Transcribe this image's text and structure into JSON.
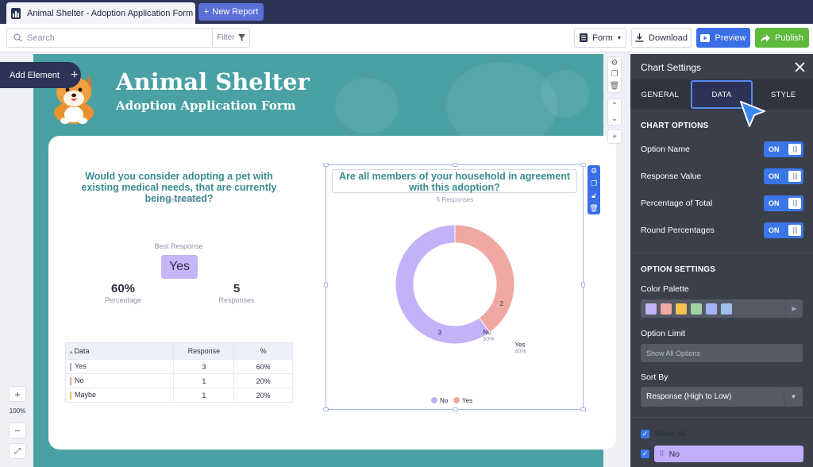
{
  "app": {
    "doc_tab_title": "Animal Shelter - Adoption Application Form",
    "new_report_label": "New Report"
  },
  "toolbar": {
    "search_placeholder": "Search",
    "filter_label": "Filter",
    "form_label": "Form",
    "download_label": "Download",
    "preview_label": "Preview",
    "publish_label": "Publish"
  },
  "canvas": {
    "add_element_label": "Add Element",
    "zoom_level": "100%"
  },
  "report": {
    "title": "Animal Shelter",
    "subtitle": "Adoption Application Form"
  },
  "chart1": {
    "question": "Would you consider adopting a pet with existing medical needs, that are currently being treated?",
    "responses_text": "5 Responses",
    "best_response_label": "Best Response",
    "best_response_value": "Yes",
    "percentage_value": "60%",
    "percentage_label": "Percentage",
    "responses_value": "5",
    "responses_label": "Responses",
    "table": {
      "headers": [
        "Data",
        "Response",
        "%"
      ],
      "rows": [
        {
          "label": "Yes",
          "response": "3",
          "pct": "60%",
          "color": "#b79cf6"
        },
        {
          "label": "No",
          "response": "1",
          "pct": "20%",
          "color": "#ef9a96"
        },
        {
          "label": "Maybe",
          "response": "1",
          "pct": "20%",
          "color": "#f6c14f"
        }
      ]
    }
  },
  "chart_data": {
    "type": "pie",
    "title": "Are all members of your household in agreement with this adoption?",
    "subtitle": "5 Responses",
    "categories": [
      "No",
      "Yes"
    ],
    "values": [
      3,
      2
    ],
    "percentages": [
      "60%",
      "40%"
    ],
    "colors": [
      "#c4b2f8",
      "#f0a8a2"
    ],
    "legend": "bottom-center",
    "donut": true
  },
  "panel": {
    "title": "Chart Settings",
    "tabs": [
      "GENERAL",
      "DATA",
      "STYLE"
    ],
    "active_tab": "DATA",
    "chart_options_title": "CHART OPTIONS",
    "chart_options": [
      {
        "label": "Option Name",
        "state": "ON"
      },
      {
        "label": "Response Value",
        "state": "ON"
      },
      {
        "label": "Percentage of Total",
        "state": "ON"
      },
      {
        "label": "Round Percentages",
        "state": "ON"
      }
    ],
    "option_settings_title": "OPTION SETTINGS",
    "color_palette_label": "Color Palette",
    "palette_colors": [
      "#c4b2f8",
      "#f0a8a2",
      "#f6c14f",
      "#9fd4a0",
      "#a3b3f5",
      "#9fc0ea"
    ],
    "option_limit_label": "Option Limit",
    "option_limit_placeholder": "Show All Options",
    "sort_by_label": "Sort By",
    "sort_by_value": "Response (High to Low)",
    "show_all_label": "Show All",
    "option_no_label": "No"
  }
}
